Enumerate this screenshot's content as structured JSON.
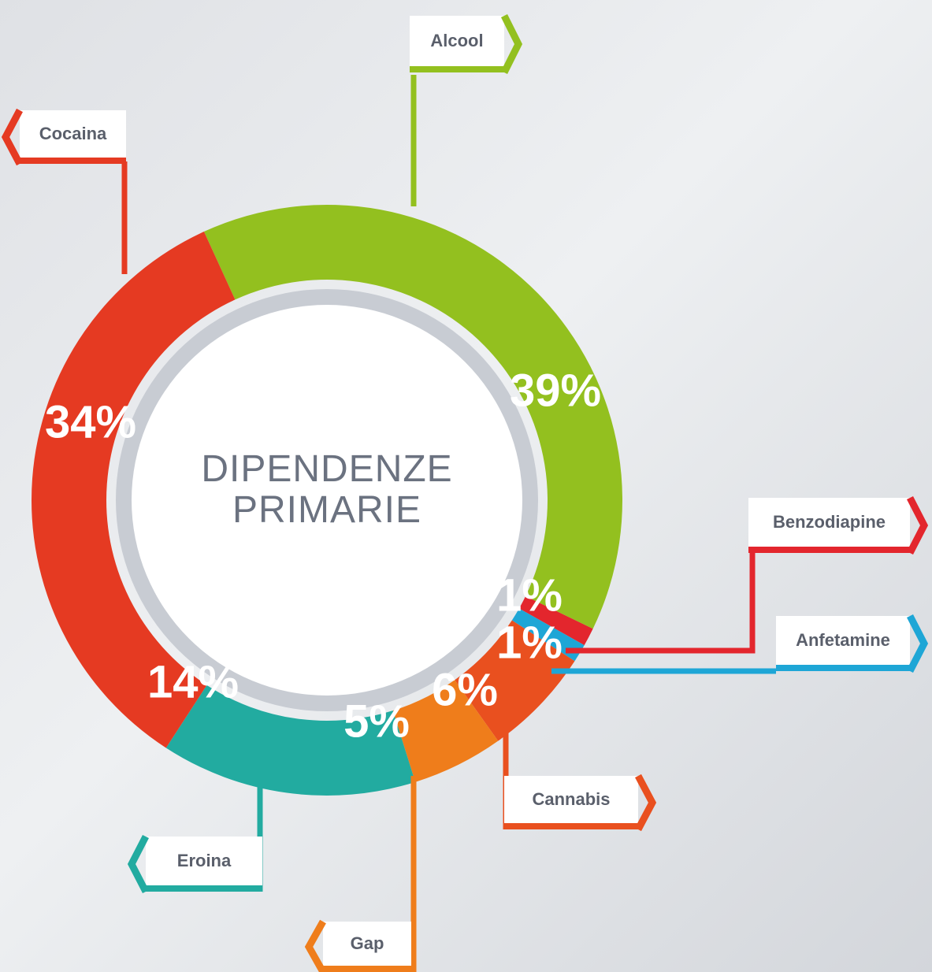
{
  "chart_data": {
    "type": "donut",
    "title": "DIPENDENZE PRIMARIE",
    "categories": [
      "Alcool",
      "Benzodiapine",
      "Anfetamine",
      "Cannabis",
      "Gap",
      "Eroina",
      "Cocaina"
    ],
    "values": [
      39,
      1,
      1,
      6,
      5,
      14,
      34
    ],
    "value_labels": [
      "39%",
      "1%",
      "1%",
      "6%",
      "5%",
      "14%",
      "34%"
    ],
    "colors": [
      "#93c01f",
      "#e3262d",
      "#1ea6d6",
      "#e9501f",
      "#ef7d1b",
      "#22aba0",
      "#e53a22"
    ]
  }
}
